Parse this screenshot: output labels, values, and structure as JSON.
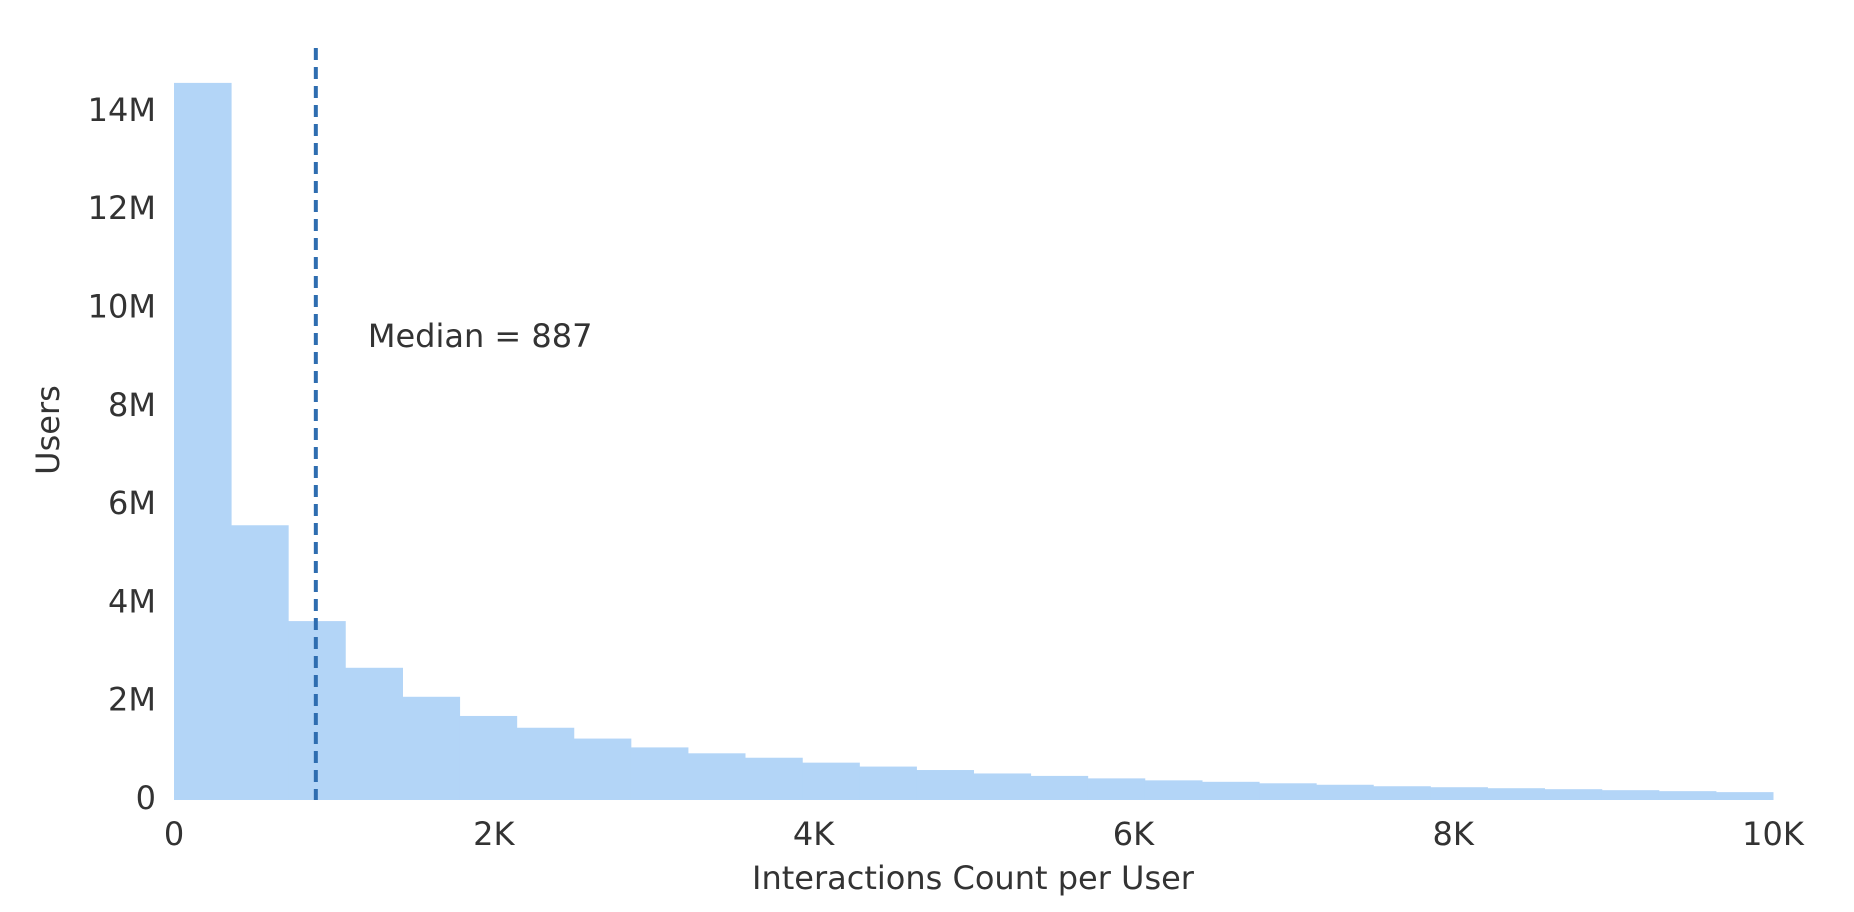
{
  "chart_data": {
    "type": "histogram",
    "x_label": "Interactions Count per User",
    "y_label": "Users",
    "bins": [
      0,
      357,
      714,
      1071,
      1429,
      1786,
      2143,
      2500,
      2857,
      3214,
      3571,
      3929,
      4286,
      4643,
      5000,
      5357,
      5714,
      6071,
      6429,
      6786,
      7143,
      7500,
      7857,
      8214,
      8571,
      8929,
      9286,
      9643,
      10000
    ],
    "values": [
      14590000,
      5590000,
      3640000,
      2690000,
      2100000,
      1710000,
      1470000,
      1250000,
      1070000,
      950000,
      860000,
      760000,
      680000,
      610000,
      540000,
      490000,
      440000,
      400000,
      370000,
      340000,
      310000,
      280000,
      260000,
      240000,
      220000,
      200000,
      180000,
      160000
    ],
    "color": "#b3d5f7",
    "median": 887,
    "median_color": "#2e6db0",
    "annotation": "Median = 887",
    "xlim": [
      0,
      10000
    ],
    "ylim": [
      0,
      15300000
    ],
    "xticks": [
      0,
      {
        "value": 2000,
        "label": "2K"
      },
      {
        "value": 4000,
        "label": "4K"
      },
      {
        "value": 6000,
        "label": "6K"
      },
      {
        "value": 8000,
        "label": "8K"
      },
      {
        "value": 10000,
        "label": "10K"
      }
    ],
    "yticks": [
      0,
      {
        "value": 2000000,
        "label": "2M"
      },
      {
        "value": 4000000,
        "label": "4M"
      },
      {
        "value": 6000000,
        "label": "6M"
      },
      {
        "value": 8000000,
        "label": "8M"
      },
      {
        "value": 10000000,
        "label": "10M"
      },
      {
        "value": 12000000,
        "label": "12M"
      },
      {
        "value": 14000000,
        "label": "14M"
      }
    ]
  }
}
